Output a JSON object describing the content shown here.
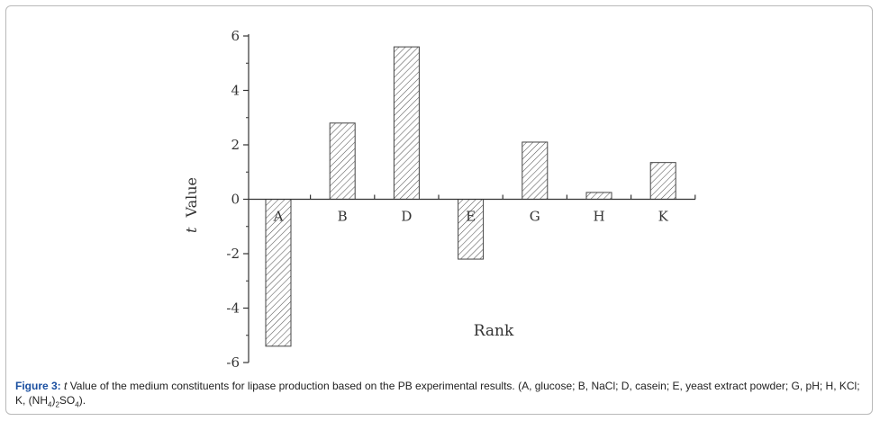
{
  "chart_data": {
    "type": "bar",
    "categories": [
      "A",
      "B",
      "D",
      "E",
      "G",
      "H",
      "K"
    ],
    "values": [
      -5.4,
      2.8,
      5.6,
      -2.2,
      2.1,
      0.25,
      1.35
    ],
    "xlabel": "Rank",
    "ylabel_var": "t",
    "ylabel": "Value",
    "ylim": [
      -6,
      6
    ],
    "yticks": [
      "-6",
      "-4",
      "-2",
      "0",
      "2",
      "4",
      "6"
    ],
    "bar_pattern": "diagonal-hatch",
    "grid": false
  },
  "caption": {
    "label": "Figure 3:",
    "var": "t",
    "text_main": " Value of the medium constituents for lipase production based on the PB experimental results. (A, glucose; B, NaCl; D, casein; E, yeast extract powder; G, pH; H, KCl; K, (NH",
    "sub_a": "4",
    "sub_b": "2",
    "text_mid": "SO",
    "sub_c": "4",
    "text_end": ")."
  }
}
